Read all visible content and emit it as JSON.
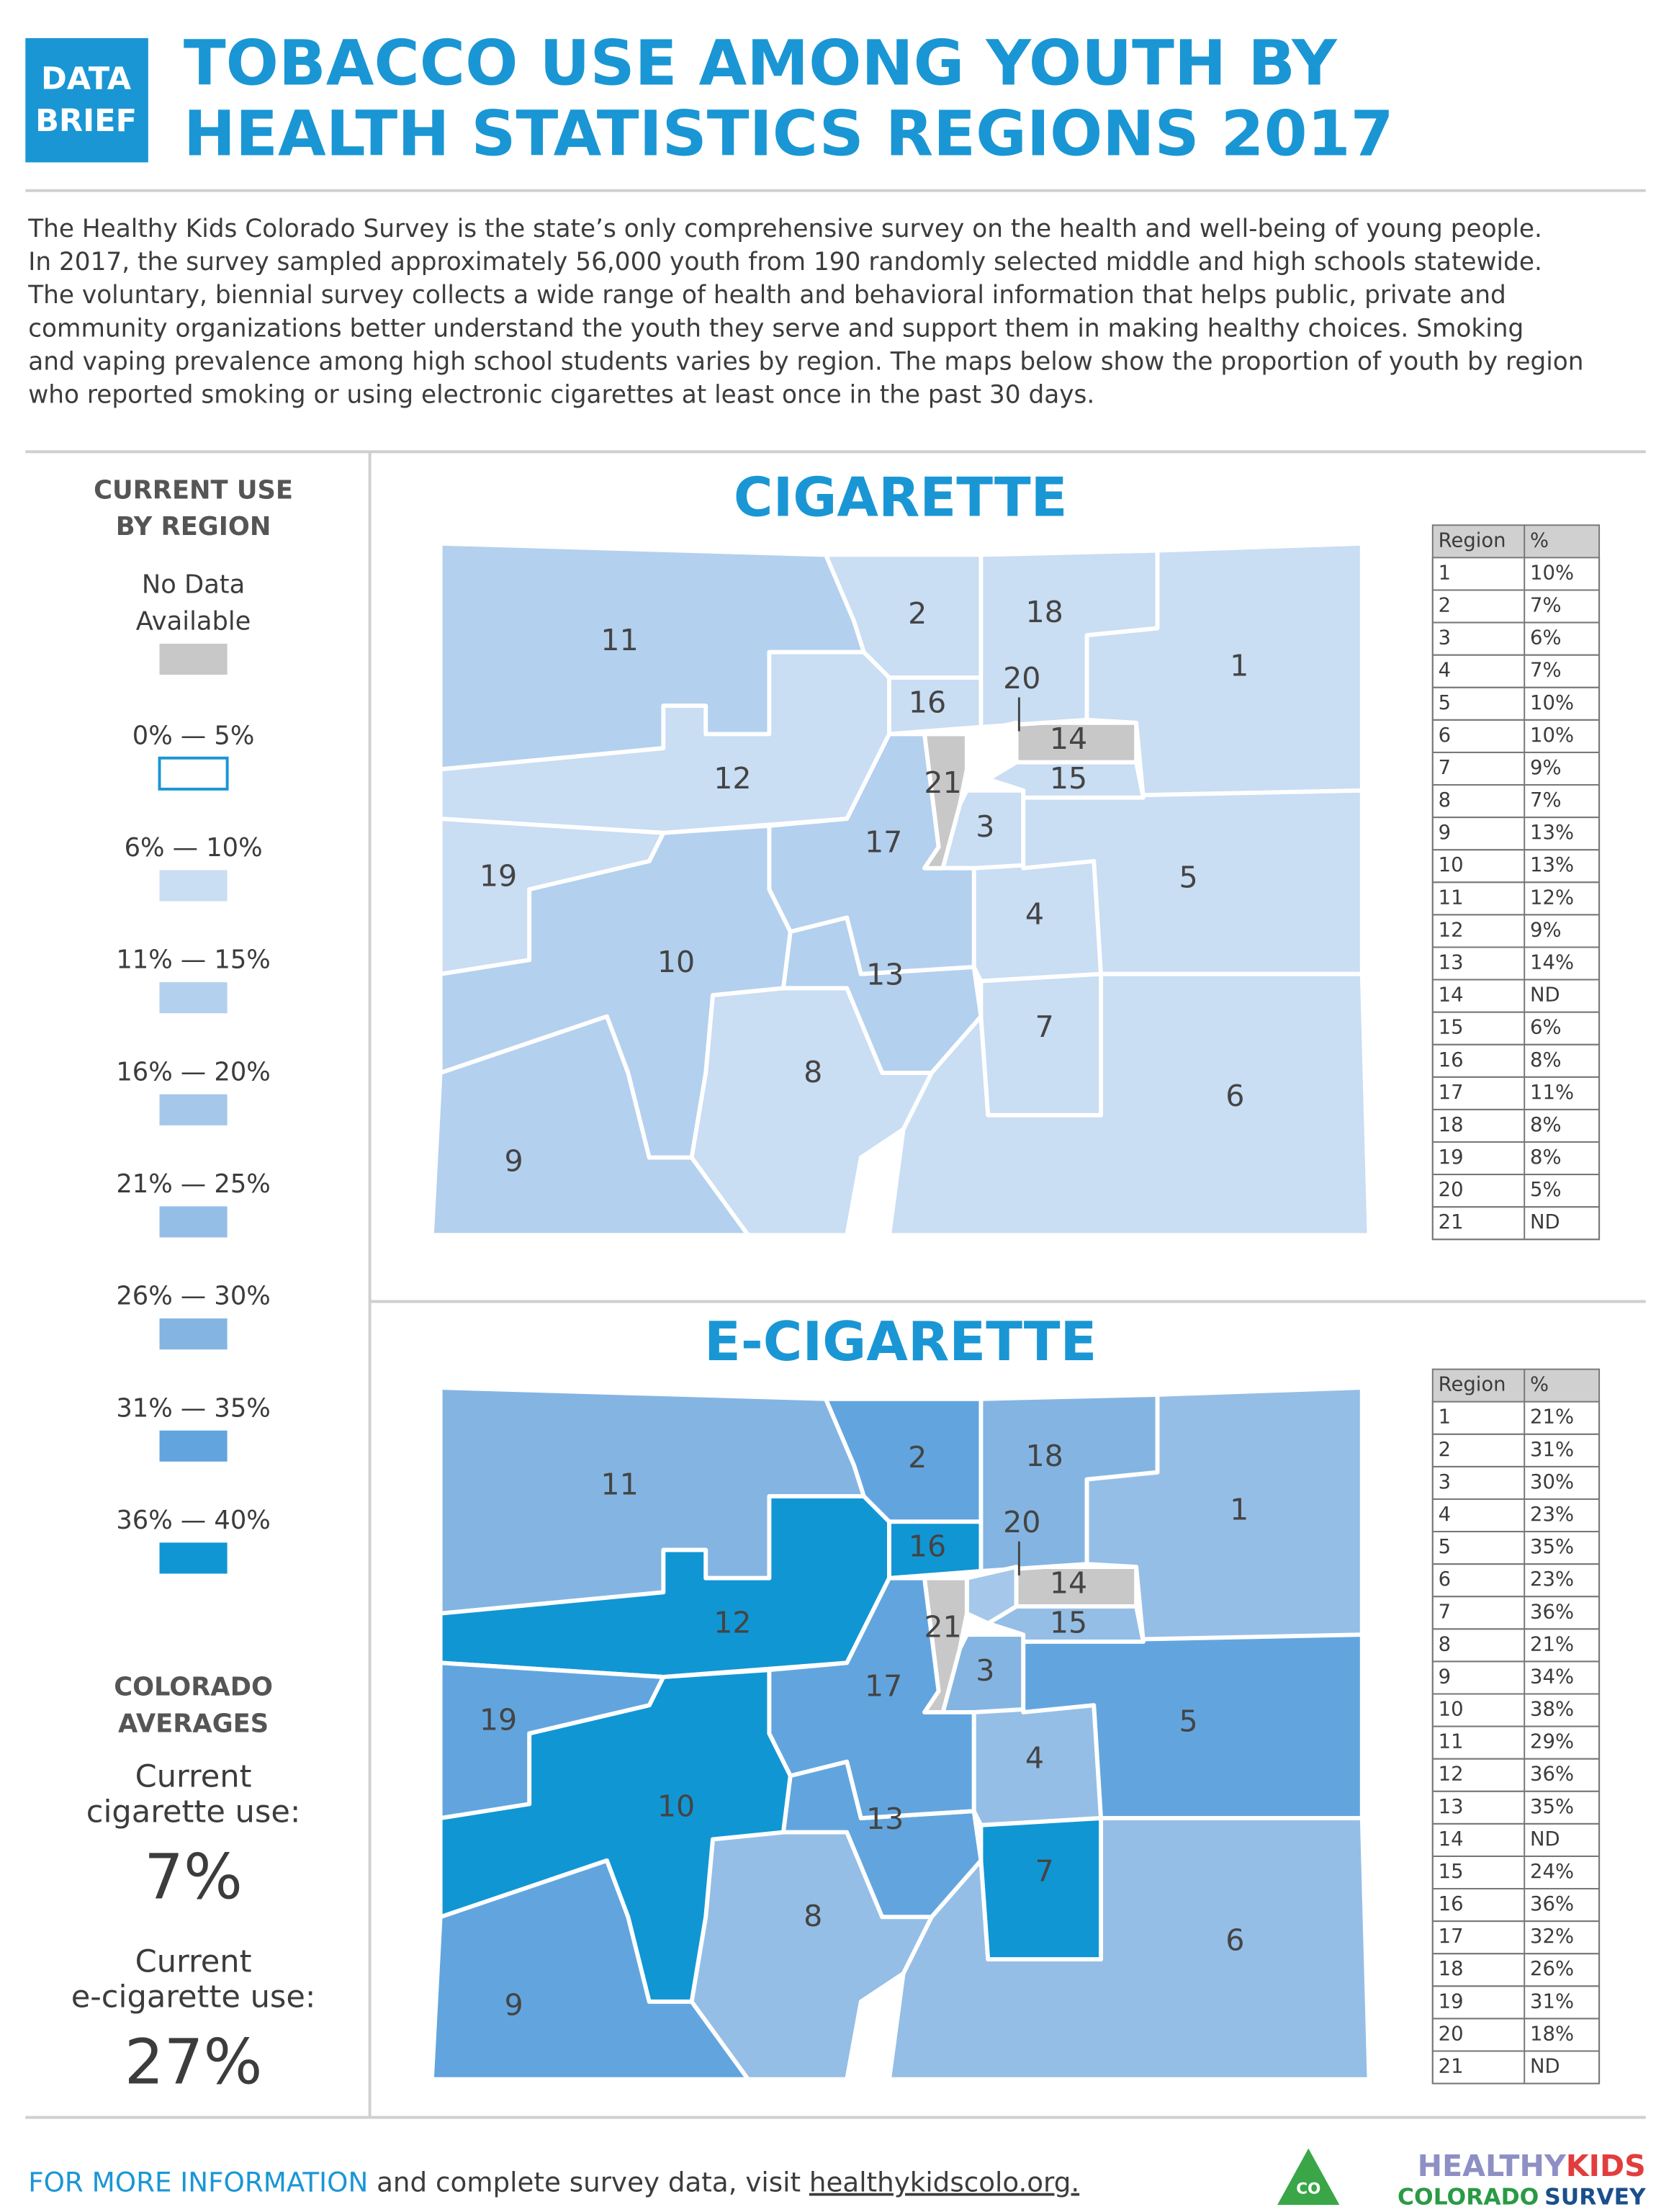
{
  "header": {
    "badge": [
      "DATA",
      "BRIEF"
    ],
    "title": [
      "TOBACCO USE AMONG YOUTH BY",
      "HEALTH STATISTICS REGIONS 2017"
    ]
  },
  "intro": [
    "The Healthy Kids Colorado Survey is the state’s only comprehensive survey on the health and well-being of young people.",
    "In 2017, the survey sampled approximately 56,000 youth from 190 randomly selected middle and high schools statewide.",
    "The voluntary, biennial survey collects a wide range of health and behavioral information that helps public, private and",
    "community organizations better understand the youth they serve and support them in making healthy choices. Smoking",
    "and vaping prevalence among high school students varies by region. The maps below show the proportion of youth by region",
    "who reported smoking or using electronic cigarettes at least once in the past 30 days."
  ],
  "legend": {
    "title": [
      "CURRENT USE",
      "BY REGION"
    ],
    "items": [
      {
        "label": [
          "No Data",
          "Available"
        ],
        "color": "#c8c8c8"
      },
      {
        "label": [
          "0% — 5%"
        ],
        "color": "#ffffff"
      },
      {
        "label": [
          "6% — 10%"
        ],
        "color": "#c9ddf3"
      },
      {
        "label": [
          "11% — 15%"
        ],
        "color": "#b3d0ee"
      },
      {
        "label": [
          "16% — 20%"
        ],
        "color": "#a5c7ea"
      },
      {
        "label": [
          "21% — 25%"
        ],
        "color": "#95bee6"
      },
      {
        "label": [
          "26% — 30%"
        ],
        "color": "#84b5e2"
      },
      {
        "label": [
          "31% — 35%"
        ],
        "color": "#62a5de"
      },
      {
        "label": [
          "36% — 40%"
        ],
        "color": "#1196d4"
      }
    ]
  },
  "averages": {
    "title": [
      "COLORADO",
      "AVERAGES"
    ],
    "items": [
      {
        "label": [
          "Current",
          "cigarette use:"
        ],
        "value": "7%"
      },
      {
        "label": [
          "Current",
          "e-cigarette use:"
        ],
        "value": "27%"
      }
    ]
  },
  "maps": [
    {
      "title": "CIGARETTE",
      "table": {
        "header": [
          "Region",
          "%"
        ],
        "rows": [
          [
            "1",
            "10%"
          ],
          [
            "2",
            "7%"
          ],
          [
            "3",
            "6%"
          ],
          [
            "4",
            "7%"
          ],
          [
            "5",
            "10%"
          ],
          [
            "6",
            "10%"
          ],
          [
            "7",
            "9%"
          ],
          [
            "8",
            "7%"
          ],
          [
            "9",
            "13%"
          ],
          [
            "10",
            "13%"
          ],
          [
            "11",
            "12%"
          ],
          [
            "12",
            "9%"
          ],
          [
            "13",
            "14%"
          ],
          [
            "14",
            "ND"
          ],
          [
            "15",
            "6%"
          ],
          [
            "16",
            "8%"
          ],
          [
            "17",
            "11%"
          ],
          [
            "18",
            "8%"
          ],
          [
            "19",
            "8%"
          ],
          [
            "20",
            "5%"
          ],
          [
            "21",
            "ND"
          ]
        ]
      }
    },
    {
      "title": "E-CIGARETTE",
      "table": {
        "header": [
          "Region",
          "%"
        ],
        "rows": [
          [
            "1",
            "21%"
          ],
          [
            "2",
            "31%"
          ],
          [
            "3",
            "30%"
          ],
          [
            "4",
            "23%"
          ],
          [
            "5",
            "35%"
          ],
          [
            "6",
            "23%"
          ],
          [
            "7",
            "36%"
          ],
          [
            "8",
            "21%"
          ],
          [
            "9",
            "34%"
          ],
          [
            "10",
            "38%"
          ],
          [
            "11",
            "29%"
          ],
          [
            "12",
            "36%"
          ],
          [
            "13",
            "35%"
          ],
          [
            "14",
            "ND"
          ],
          [
            "15",
            "24%"
          ],
          [
            "16",
            "36%"
          ],
          [
            "17",
            "32%"
          ],
          [
            "18",
            "26%"
          ],
          [
            "19",
            "31%"
          ],
          [
            "20",
            "18%"
          ],
          [
            "21",
            "ND"
          ]
        ]
      }
    }
  ],
  "footer": {
    "lead": "FOR MORE INFORMATION",
    "text": "and complete survey data, visit",
    "link": "healthykidscolo.org."
  },
  "logo": {
    "badge": "CO",
    "line1": [
      "HEALTHY",
      "KIDS"
    ],
    "line2": [
      "COLORADO",
      "SURVEY"
    ]
  }
}
